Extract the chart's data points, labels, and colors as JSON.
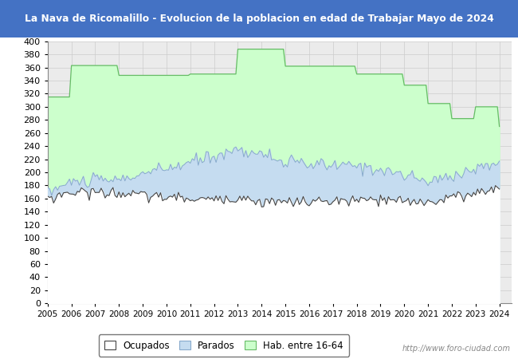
{
  "title": "La Nava de Ricomalillo - Evolucion de la poblacion en edad de Trabajar Mayo de 2024",
  "title_bg_color": "#4472C4",
  "title_text_color": "#FFFFFF",
  "ylim": [
    0,
    400
  ],
  "yticks": [
    0,
    20,
    40,
    60,
    80,
    100,
    120,
    140,
    160,
    180,
    200,
    220,
    240,
    260,
    280,
    300,
    320,
    340,
    360,
    380,
    400
  ],
  "years": [
    2005,
    2006,
    2007,
    2008,
    2009,
    2010,
    2011,
    2012,
    2013,
    2014,
    2015,
    2016,
    2017,
    2018,
    2019,
    2020,
    2021,
    2022,
    2023,
    2024
  ],
  "hab_16_64": [
    315,
    363,
    363,
    348,
    348,
    348,
    350,
    350,
    388,
    388,
    362,
    362,
    362,
    350,
    350,
    333,
    305,
    282,
    300,
    270
  ],
  "parados_mean": [
    170,
    185,
    188,
    188,
    198,
    205,
    215,
    225,
    235,
    228,
    215,
    212,
    210,
    210,
    205,
    195,
    185,
    195,
    205,
    215
  ],
  "ocupados_mean": [
    160,
    170,
    170,
    168,
    165,
    162,
    160,
    158,
    162,
    155,
    155,
    155,
    155,
    157,
    158,
    155,
    155,
    162,
    168,
    178
  ],
  "grid_color": "#CCCCCC",
  "plot_bg_color": "#EBEBEB",
  "fill_hab_color": "#CCFFCC",
  "fill_hab_edge": "#66BB66",
  "fill_parados_color": "#C5DCF0",
  "fill_parados_edge": "#88AACC",
  "fill_ocupados_color": "#FFFFFF",
  "fill_ocupados_edge": "#444444",
  "watermark": "http://www.foro-ciudad.com",
  "legend_labels": [
    "Ocupados",
    "Parados",
    "Hab. entre 16-64"
  ],
  "legend_face_colors": [
    "#FFFFFF",
    "#C5DCF0",
    "#CCFFCC"
  ],
  "legend_edge_colors": [
    "#444444",
    "#88AACC",
    "#66BB66"
  ]
}
